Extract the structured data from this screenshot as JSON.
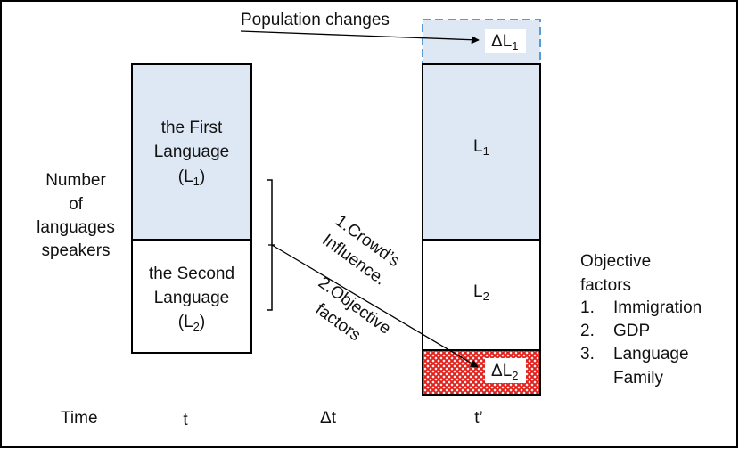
{
  "texts": {
    "population_changes": "Population changes",
    "delta_l1": "ΔL",
    "delta_l1_sub": "1",
    "first_lang_line1": "the First",
    "first_lang_line2": "Language",
    "first_lang_line3_pre": "(L",
    "first_lang_line3_sub": "1",
    "first_lang_line3_post": ")",
    "second_lang_line1": "the Second",
    "second_lang_line2": "Language",
    "second_lang_line3_pre": "(L",
    "second_lang_line3_sub": "2",
    "second_lang_line3_post": ")",
    "l1": "L",
    "l1_sub": "1",
    "l2": "L",
    "l2_sub": "2",
    "delta_l2": "ΔL",
    "delta_l2_sub": "2",
    "ylabel_lines": [
      "Number",
      "of",
      "languages",
      "speakers"
    ],
    "influence_line1": "1.Crowd’s",
    "influence_line2": "Influence.",
    "influence_line3": "2.Objective",
    "influence_line4": "factors",
    "objective_title_line1": "Objective",
    "objective_title_line2": "factors",
    "objective_items": [
      {
        "num": "1.",
        "text": "Immigration"
      },
      {
        "num": "2.",
        "text": "GDP"
      },
      {
        "num": "3.",
        "text": "Language"
      },
      {
        "num": "",
        "text": "Family"
      }
    ],
    "time_label": "Time",
    "time_t": "t",
    "time_delta": "Δt",
    "time_t_prime": "t’"
  },
  "colors": {
    "l1_fill": "#dee8f5",
    "dashed_border": "#5b9bd5",
    "hatch_red": "#e0201b",
    "stroke": "#000000"
  }
}
